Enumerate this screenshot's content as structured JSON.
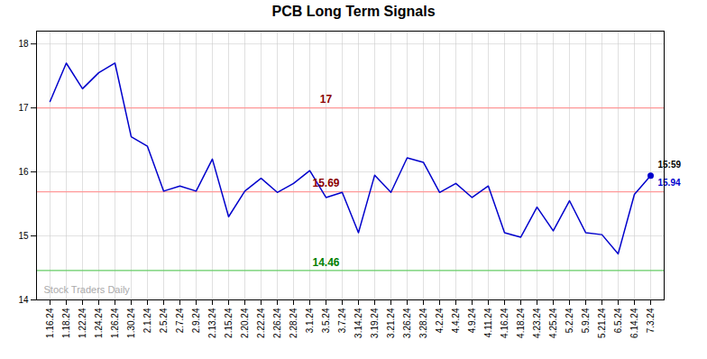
{
  "chart_data": {
    "type": "line",
    "title": "PCB Long Term Signals",
    "categories": [
      "1.16.24",
      "1.18.24",
      "1.22.24",
      "1.24.24",
      "1.26.24",
      "1.30.24",
      "2.1.24",
      "2.5.24",
      "2.7.24",
      "2.9.24",
      "2.13.24",
      "2.15.24",
      "2.20.24",
      "2.22.24",
      "2.26.24",
      "2.28.24",
      "3.1.24",
      "3.5.24",
      "3.7.24",
      "3.14.24",
      "3.19.24",
      "3.21.24",
      "3.26.24",
      "3.28.24",
      "4.2.24",
      "4.4.24",
      "4.9.24",
      "4.11.24",
      "4.16.24",
      "4.18.24",
      "4.23.24",
      "4.25.24",
      "5.2.24",
      "5.9.24",
      "5.21.24",
      "6.5.24",
      "6.14.24",
      "7.3.24"
    ],
    "values": [
      17.1,
      17.7,
      17.3,
      17.55,
      17.7,
      16.55,
      16.4,
      15.7,
      15.78,
      15.7,
      16.2,
      15.3,
      15.7,
      15.9,
      15.68,
      15.82,
      16.02,
      15.6,
      15.68,
      15.05,
      15.95,
      15.68,
      16.22,
      16.15,
      15.68,
      15.82,
      15.6,
      15.78,
      15.05,
      14.98,
      15.45,
      15.08,
      15.55,
      15.05,
      15.02,
      14.72,
      15.65,
      15.94
    ],
    "color": "#0000cc",
    "ylim": [
      14.0,
      18.2
    ],
    "yticks": [
      14,
      15,
      16,
      17,
      18
    ],
    "grid": true,
    "reference_lines": [
      {
        "value": 17.0,
        "label": "17",
        "color": "#ff9999",
        "label_color": "darkred"
      },
      {
        "value": 15.69,
        "label": "15.69",
        "color": "#ff9999",
        "label_color": "darkred"
      },
      {
        "value": 14.46,
        "label": "14.46",
        "color": "#66cc66",
        "label_color": "green"
      }
    ],
    "last_point": {
      "marker": "circle",
      "time": "15:59",
      "time_color": "black",
      "value_label": "15.94",
      "value_color": "#0000cc"
    },
    "watermark": "Stock Traders Daily"
  }
}
